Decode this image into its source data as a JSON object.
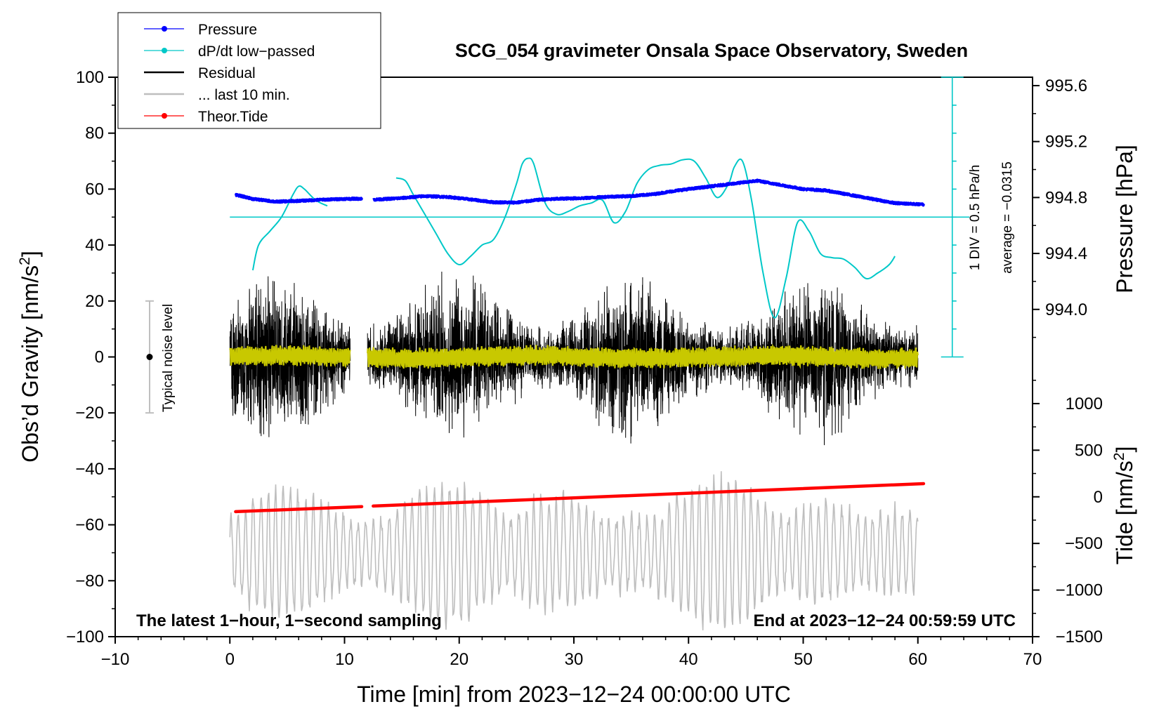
{
  "chart_data": {
    "type": "line",
    "title": "SCG_054 gravimeter Onsala Space Observatory, Sweden",
    "xlabel": "Time [min] from 2023−12−24 00:00:00 UTC",
    "ylabel_left": "Obs’d Gravity [nm/s2]",
    "ylabel_left_parts": {
      "main": "Obs’d Gravity [nm/s",
      "sup": "2",
      "end": "]"
    },
    "ylabel_right_pressure": "Pressure [hPa]",
    "ylabel_right_tide": "Tide [nm/s2]",
    "ylabel_right_tide_parts": {
      "main": "Tide [nm/s",
      "sup": "2",
      "end": "]"
    },
    "xlim": [
      -10,
      70
    ],
    "ylim": [
      -100,
      100
    ],
    "x_ticks": [
      -10,
      0,
      10,
      20,
      30,
      40,
      50,
      60,
      70
    ],
    "x_tick_labels": [
      "−10",
      "0",
      "10",
      "20",
      "30",
      "40",
      "50",
      "60",
      "70"
    ],
    "y_ticks": [
      -100,
      -80,
      -60,
      -40,
      -20,
      0,
      20,
      40,
      60,
      80,
      100
    ],
    "y_tick_labels": [
      "−100",
      "−80",
      "−60",
      "−40",
      "−20",
      "0",
      "20",
      "40",
      "60",
      "80",
      "100"
    ],
    "pressure_axis": {
      "ticks": [
        994.0,
        994.4,
        994.8,
        995.2,
        995.6
      ],
      "tick_labels": [
        "994.0",
        "994.4",
        "994.8",
        "995.2",
        "995.6"
      ],
      "gravity_equiv_at_994": 17,
      "gravity_per_hpa": 50
    },
    "tide_axis": {
      "ticks": [
        -1500,
        -1000,
        -500,
        0,
        500,
        1000
      ],
      "tick_labels": [
        "−1500",
        "−1000",
        "−500",
        "0",
        "500",
        "1000"
      ],
      "gravity_equiv_at_0": -50,
      "gravity_per_unit": 0.03333
    },
    "legend": {
      "position": "top-left",
      "items": [
        {
          "label": "Pressure",
          "color": "#0000ff",
          "marker": "dot"
        },
        {
          "label": "dP/dt low−passed",
          "color": "#00c8c8",
          "marker": "dot"
        },
        {
          "label": "Residual",
          "color": "#000000",
          "marker": "none"
        },
        {
          "label": "... last 10 min.",
          "color": "#bebebe",
          "marker": "none"
        },
        {
          "label": "Theor.Tide",
          "color": "#ff0000",
          "marker": "dot"
        }
      ]
    },
    "annotations": {
      "noise_label": "Typical noise level",
      "noise_range": [
        -20,
        20
      ],
      "noise_x": -7,
      "dpdt_scale": "1 DIV = 0.5 hPa/h",
      "dpdt_average": "average = −0.0315",
      "dpdt_zero_level": 50,
      "dpdt_bar_x": 63,
      "dpdt_bar_range": [
        0,
        100
      ],
      "footer_left": "The latest 1−hour, 1−second sampling",
      "footer_right": "End at 2023−12−24 00:59:59 UTC"
    },
    "series": [
      {
        "name": "Pressure",
        "color": "#0000ff",
        "units": "gravity-equivalent",
        "segments": [
          {
            "x": [
              0.5,
              2,
              4,
              6,
              8,
              10,
              11.5
            ],
            "y": [
              58,
              56.5,
              55.5,
              55.8,
              56.2,
              56.5,
              56.6
            ]
          },
          {
            "x": [
              12.5,
              15,
              17,
              19,
              21,
              23,
              25,
              27,
              29,
              31,
              33,
              35,
              37,
              39,
              41,
              43,
              45,
              46,
              48,
              50,
              52,
              54,
              56,
              58,
              60.5
            ],
            "y": [
              56.2,
              56.8,
              57.5,
              57.2,
              56.3,
              55.3,
              55.2,
              56.2,
              56.6,
              56.8,
              57.3,
              57.5,
              58.2,
              59.5,
              60.5,
              61.5,
              62.5,
              63,
              61.5,
              60,
              59.5,
              58,
              56.5,
              55,
              54.5
            ]
          }
        ]
      },
      {
        "name": "dP/dt low-passed",
        "color": "#00c8c8",
        "units": "gravity-equivalent",
        "segments": [
          {
            "x": [
              2,
              2.5,
              3.5,
              4.5,
              5.5,
              6,
              6.5,
              7.5,
              8.5
            ],
            "y": [
              31,
              40,
              45,
              50,
              58,
              61,
              60,
              56,
              54
            ]
          },
          {
            "x": [
              14.5,
              15.3,
              16,
              17,
              18,
              19,
              20,
              21,
              22,
              23,
              24,
              25,
              25.5,
              26,
              26.5,
              27.5,
              28.5,
              29.5,
              30.5,
              31.5,
              32.5,
              33.5,
              34.5,
              35.5,
              36.5,
              37.5,
              38.5,
              39.5,
              40.5,
              41.5,
              42.5,
              43.5,
              44,
              44.7,
              45.5,
              46.5,
              47.5,
              48.5,
              49.5,
              50.5,
              51.5,
              52.5,
              53.5,
              54.5,
              55.5,
              56.5,
              57.5,
              58
            ],
            "y": [
              64,
              63,
              58,
              51,
              44,
              37,
              33,
              36,
              40,
              42,
              50,
              62,
              69,
              71,
              69,
              55,
              51,
              52,
              54,
              55,
              56,
              48,
              52,
              62,
              67,
              68.5,
              69,
              70.5,
              70,
              64,
              57,
              62,
              68,
              70,
              56,
              30,
              14,
              28,
              48,
              45,
              37,
              35.5,
              35,
              32,
              28,
              30,
              33,
              36
            ]
          }
        ]
      },
      {
        "name": "Residual",
        "color": "#000000",
        "amplitude_estimate": 30,
        "gap": [
          10.5,
          12
        ],
        "range_x": [
          0,
          60
        ]
      },
      {
        "name": "... last 10 min.",
        "color": "#bebebe",
        "center": -70,
        "amplitude_estimate": 20,
        "range_x": [
          0,
          60
        ]
      },
      {
        "name": "Theor.Tide",
        "color": "#ff0000",
        "units": "gravity-equivalent",
        "segments": [
          {
            "x": [
              0.5,
              11.5
            ],
            "y": [
              -55.3,
              -53.5
            ]
          },
          {
            "x": [
              12.5,
              60.5
            ],
            "y": [
              -53.3,
              -45.3
            ]
          }
        ]
      },
      {
        "name": "Residual smoothed",
        "color": "#c8c800",
        "amplitude_estimate": 3,
        "range_x": [
          0,
          60
        ]
      }
    ]
  }
}
